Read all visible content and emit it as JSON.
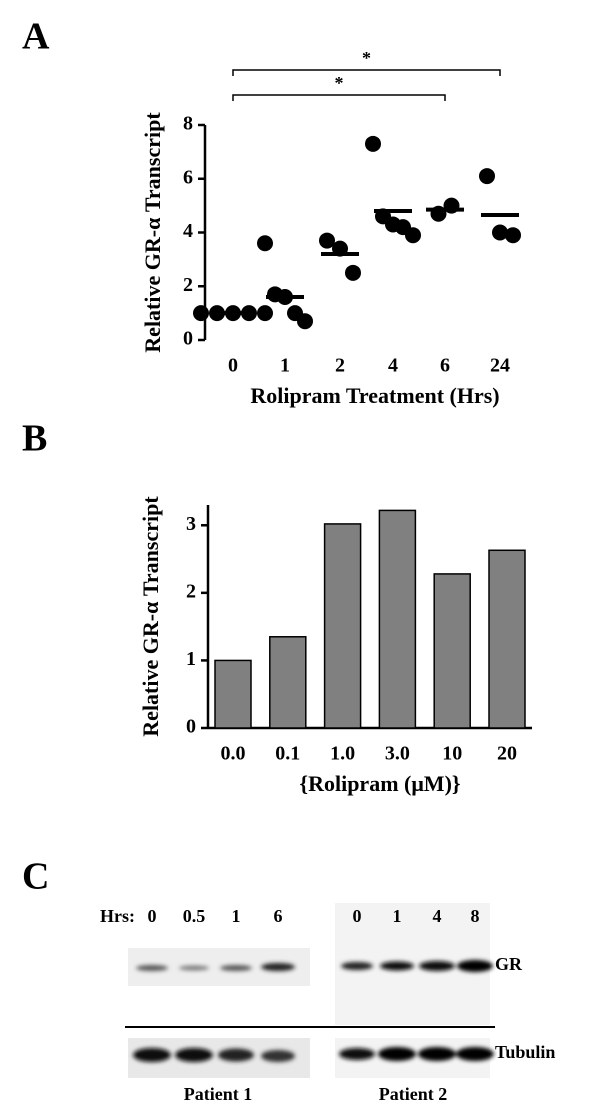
{
  "chart_data": [
    {
      "type": "dotplot",
      "panel": "A",
      "ylabel": "Relative GR-α Transcript",
      "xlabel": "Rolipram Treatment (Hrs)",
      "categories": [
        "0",
        "1",
        "2",
        "4",
        "6",
        "24"
      ],
      "points": [
        [
          1.0,
          1.0,
          1.0,
          1.0,
          1.0
        ],
        [
          3.6,
          1.7,
          1.6,
          1.0,
          0.7
        ],
        [
          3.7,
          3.4,
          2.5
        ],
        [
          7.3,
          4.6,
          4.3,
          4.2,
          3.9
        ],
        [
          4.7,
          5.0
        ],
        [
          6.1,
          4.0,
          3.9
        ]
      ],
      "means": [
        1.0,
        1.6,
        3.2,
        4.8,
        4.85,
        4.65
      ],
      "ylim": [
        0,
        8
      ],
      "yticks": [
        0,
        2,
        4,
        6,
        8
      ],
      "annotations": [
        {
          "text": "*",
          "span": [
            "0",
            "24"
          ]
        },
        {
          "text": "*",
          "span": [
            "0",
            "6"
          ]
        }
      ]
    },
    {
      "type": "bar",
      "panel": "B",
      "ylabel": "Relative GR-α Transcript",
      "xlabel": "{Rolipram  (μM)}",
      "categories": [
        "0.0",
        "0.1",
        "1.0",
        "3.0",
        "10",
        "20"
      ],
      "values": [
        1.0,
        1.35,
        3.02,
        3.22,
        2.28,
        2.63
      ],
      "color": "#808080",
      "ylim": [
        0,
        3.3
      ],
      "yticks": [
        0,
        1,
        2,
        3
      ]
    }
  ],
  "blot": {
    "panel": "C",
    "row_label": "Hrs:",
    "bands": [
      "GR",
      "Tubulin"
    ],
    "patients": [
      {
        "name": "Patient 1",
        "times": [
          "0",
          "0.5",
          "1",
          "6"
        ]
      },
      {
        "name": "Patient 2",
        "times": [
          "0",
          "1",
          "4",
          "8"
        ]
      }
    ]
  }
}
